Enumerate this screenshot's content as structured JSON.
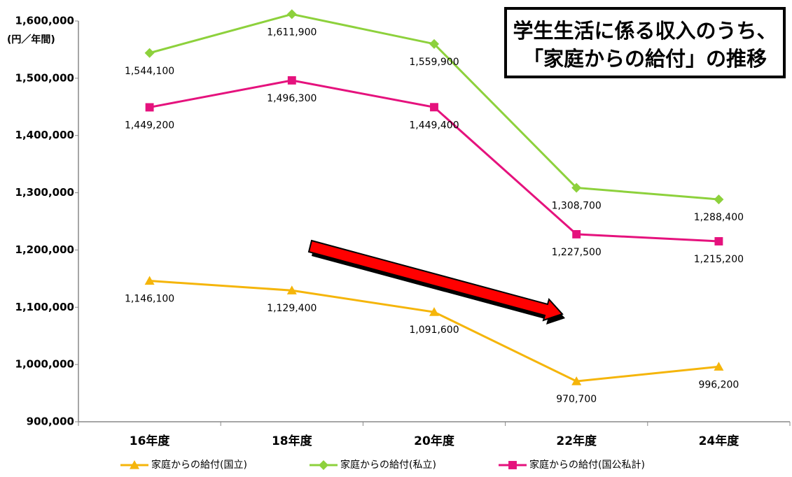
{
  "chart_data": {
    "type": "line",
    "title": [
      "学生生活に係る収入のうち、",
      "「家庭からの給付」の推移"
    ],
    "y_label": "(円／年間)",
    "categories": [
      "16年度",
      "18年度",
      "20年度",
      "22年度",
      "24年度"
    ],
    "series": [
      {
        "name": "家庭からの給付(国立)",
        "color": "#f5b50a",
        "marker": "triangle",
        "values": [
          1146100,
          1129400,
          1091600,
          970700,
          996200
        ],
        "value_labels": [
          "1,146,100",
          "1,129,400",
          "1,091,600",
          "970,700",
          "996,200"
        ]
      },
      {
        "name": "家庭からの給付(私立)",
        "color": "#8dd13c",
        "marker": "diamond",
        "values": [
          1544100,
          1611900,
          1559900,
          1308700,
          1288400
        ],
        "value_labels": [
          "1,544,100",
          "1,611,900",
          "1,559,900",
          "1,308,700",
          "1,288,400"
        ]
      },
      {
        "name": "家庭からの給付(国公私計)",
        "color": "#e5127d",
        "marker": "square",
        "values": [
          1449200,
          1496300,
          1449400,
          1227500,
          1215200
        ],
        "value_labels": [
          "1,449,200",
          "1,496,300",
          "1,449,400",
          "1,227,500",
          "1,215,200"
        ]
      }
    ],
    "ylim": [
      900000,
      1600000
    ],
    "yticks": [
      {
        "value": 900000,
        "label": "900,000"
      },
      {
        "value": 1000000,
        "label": "1,000,000"
      },
      {
        "value": 1100000,
        "label": "1,100,000"
      },
      {
        "value": 1200000,
        "label": "1,200,000"
      },
      {
        "value": 1300000,
        "label": "1,300,000"
      },
      {
        "value": 1400000,
        "label": "1,400,000"
      },
      {
        "value": 1500000,
        "label": "1,500,000"
      },
      {
        "value": 1600000,
        "label": "1,600,000"
      }
    ],
    "grid": false,
    "legend": "bottom"
  }
}
